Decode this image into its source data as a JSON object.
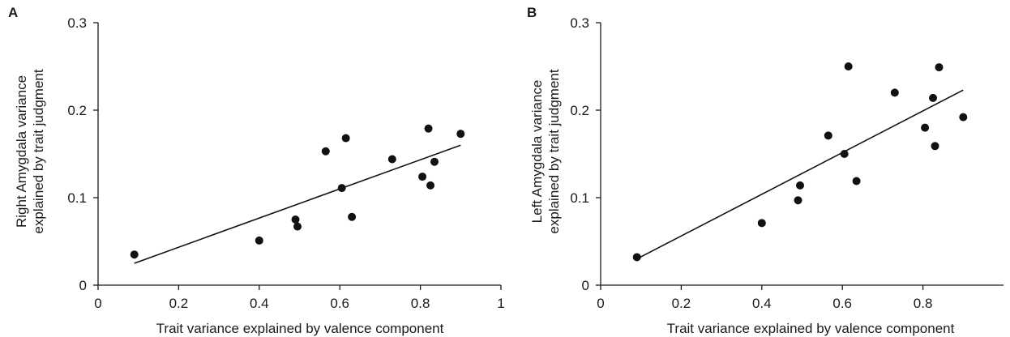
{
  "chart_data": [
    {
      "type": "scatter",
      "panel_label": "A",
      "ylabel_lines": [
        "Right Amygdala variance",
        "explained by trait judgment"
      ],
      "xlabel": "Trait variance explained by valence component",
      "xlim": [
        0,
        1
      ],
      "ylim": [
        0,
        0.3
      ],
      "xticks": [
        0,
        0.2,
        0.4,
        0.6,
        0.8,
        1
      ],
      "xtick_labels": [
        "0",
        "0.2",
        "0.4",
        "0.6",
        "0.8",
        "1"
      ],
      "yticks": [
        0,
        0.1,
        0.2,
        0.3
      ],
      "ytick_labels": [
        "0",
        "0.1",
        "0.2",
        "0.3"
      ],
      "grid": false,
      "points": [
        {
          "x": 0.09,
          "y": 0.035
        },
        {
          "x": 0.4,
          "y": 0.051
        },
        {
          "x": 0.49,
          "y": 0.075
        },
        {
          "x": 0.495,
          "y": 0.067
        },
        {
          "x": 0.565,
          "y": 0.153
        },
        {
          "x": 0.605,
          "y": 0.111
        },
        {
          "x": 0.615,
          "y": 0.168
        },
        {
          "x": 0.63,
          "y": 0.078
        },
        {
          "x": 0.73,
          "y": 0.144
        },
        {
          "x": 0.805,
          "y": 0.124
        },
        {
          "x": 0.82,
          "y": 0.179
        },
        {
          "x": 0.825,
          "y": 0.114
        },
        {
          "x": 0.835,
          "y": 0.141
        },
        {
          "x": 0.9,
          "y": 0.173
        }
      ],
      "trendline": {
        "x": [
          0.09,
          0.9
        ],
        "y": [
          0.025,
          0.16
        ]
      }
    },
    {
      "type": "scatter",
      "panel_label": "B",
      "ylabel_lines": [
        "Left Amygdala variance",
        "explained by trait judgment"
      ],
      "xlabel": "Trait variance explained by valence component",
      "xlim": [
        0,
        1
      ],
      "ylim": [
        0,
        0.3
      ],
      "xticks": [
        0,
        0.2,
        0.4,
        0.6,
        0.8
      ],
      "xtick_labels": [
        "0",
        "0.2",
        "0.4",
        "0.6",
        "0.8"
      ],
      "yticks": [
        0,
        0.1,
        0.2,
        0.3
      ],
      "ytick_labels": [
        "0",
        "0.1",
        "0.2",
        "0.3"
      ],
      "grid": false,
      "points": [
        {
          "x": 0.09,
          "y": 0.032
        },
        {
          "x": 0.4,
          "y": 0.071
        },
        {
          "x": 0.49,
          "y": 0.097
        },
        {
          "x": 0.495,
          "y": 0.114
        },
        {
          "x": 0.565,
          "y": 0.171
        },
        {
          "x": 0.605,
          "y": 0.15
        },
        {
          "x": 0.615,
          "y": 0.25
        },
        {
          "x": 0.635,
          "y": 0.119
        },
        {
          "x": 0.73,
          "y": 0.22
        },
        {
          "x": 0.805,
          "y": 0.18
        },
        {
          "x": 0.825,
          "y": 0.214
        },
        {
          "x": 0.83,
          "y": 0.159
        },
        {
          "x": 0.84,
          "y": 0.249
        },
        {
          "x": 0.9,
          "y": 0.192
        }
      ],
      "trendline": {
        "x": [
          0.09,
          0.9
        ],
        "y": [
          0.03,
          0.223
        ]
      }
    }
  ]
}
